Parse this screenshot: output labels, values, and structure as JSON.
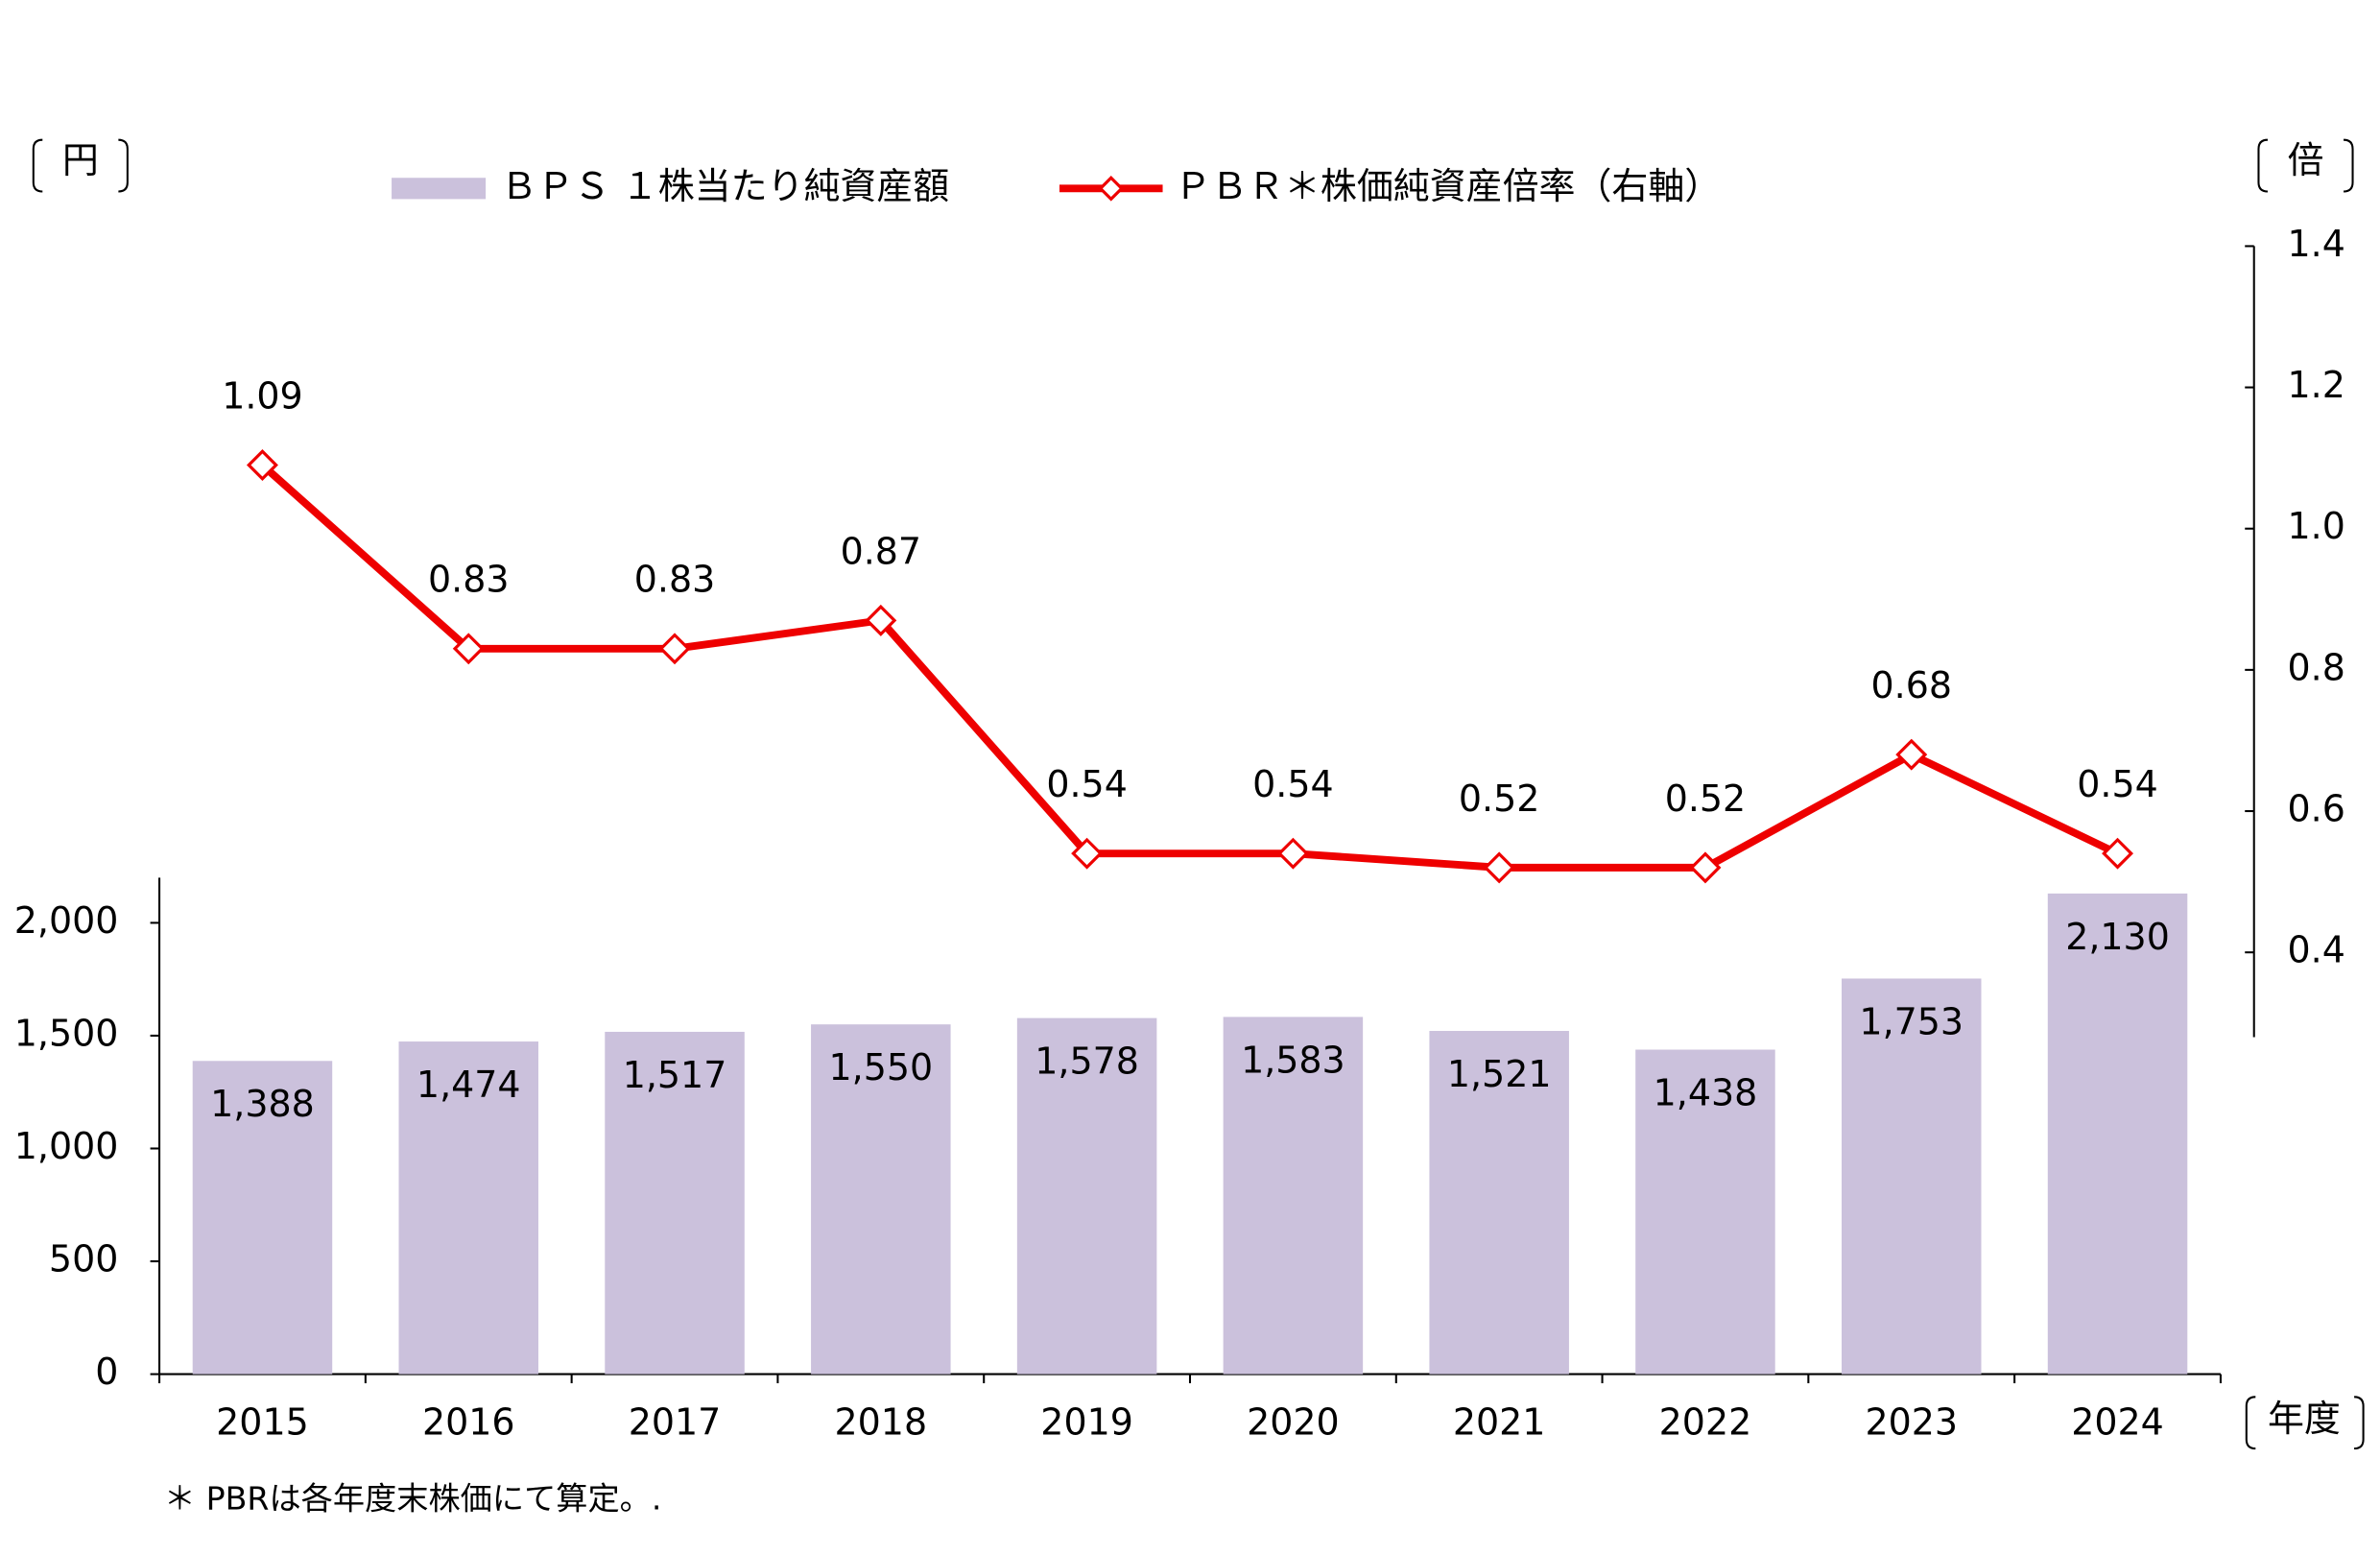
{
  "chart_data": {
    "type": "bar-line",
    "categories": [
      "2015",
      "2016",
      "2017",
      "2018",
      "2019",
      "2020",
      "2021",
      "2022",
      "2023",
      "2024"
    ],
    "series": [
      {
        "name": "ＢＰＳ １株当たり純資産額",
        "type": "bar",
        "color": "#cbc1dc",
        "values": [
          1388,
          1474,
          1517,
          1550,
          1578,
          1583,
          1521,
          1438,
          1753,
          2130
        ],
        "value_labels": [
          "1,388",
          "1,474",
          "1,517",
          "1,550",
          "1,578",
          "1,583",
          "1,521",
          "1,438",
          "1,753",
          "2,130"
        ]
      },
      {
        "name": "ＰＢＲ＊株価純資産倍率（右軸）",
        "type": "line",
        "axis": "y2",
        "color": "#ee0000",
        "values": [
          1.09,
          0.83,
          0.83,
          0.87,
          0.54,
          0.54,
          0.52,
          0.52,
          0.68,
          0.54
        ]
      }
    ],
    "ylim": [
      0,
      2200
    ],
    "yticks": [
      0,
      500,
      {
        "value": 1000,
        "label": "1,000"
      },
      {
        "value": 1500,
        "label": "1,500"
      },
      {
        "value": 2000,
        "label": "2,000"
      }
    ],
    "y2lim": [
      0.28,
      1.4
    ],
    "y2ticks": [
      0.4,
      0.6,
      0.8,
      {
        "value": 1.0,
        "label": "1.0"
      },
      1.2,
      1.4
    ],
    "y_unit": "円",
    "y2_unit": "倍",
    "x_unit": "年度",
    "footnote": "＊ PBRは各年度末株価にて算定。."
  }
}
